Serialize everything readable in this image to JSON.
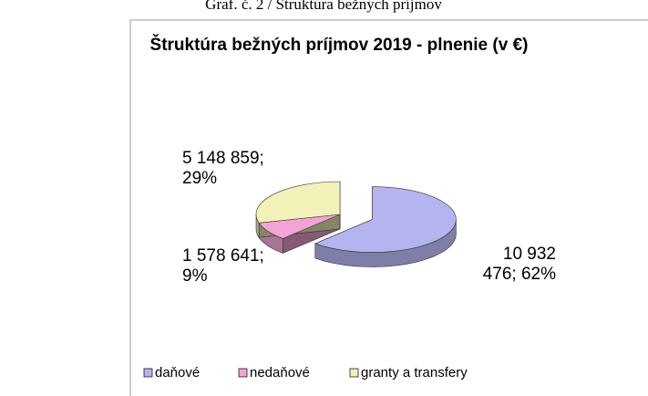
{
  "caption": "Graf. č. 2 / Štruktúra bežných príjmov",
  "chart_data": {
    "type": "pie",
    "title": "Štruktúra bežných príjmov 2019 - plnenie (v €)",
    "categories": [
      "daňové",
      "nedaňové",
      "granty a transfery"
    ],
    "values": [
      10932476,
      1578641,
      5148859
    ],
    "value_labels": [
      "10 932 476; 62%",
      "1 578 641; 9%",
      "5 148 859; 29%"
    ],
    "colors": [
      "#b4b4f0",
      "#f2a4d6",
      "#f2f2b8"
    ],
    "legend": "bottom"
  }
}
